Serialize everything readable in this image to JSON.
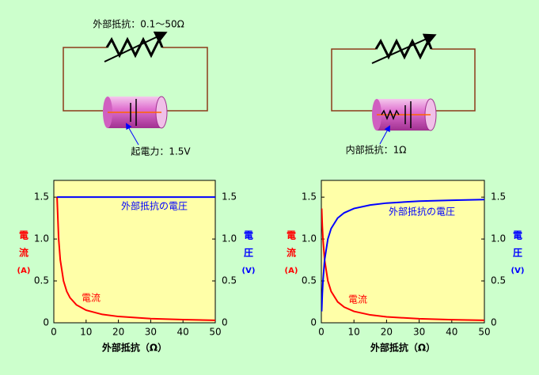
{
  "diagram": {
    "labels": [
      "外部抵抗：0.1～50Ω",
      "起電力：1.5V",
      "内部抵抗：1Ω"
    ]
  },
  "chart_data": [
    {
      "type": "line",
      "xlabel": "外部抵抗（Ω）",
      "ylabel": [
        "電",
        "流",
        "(A)"
      ],
      "y2label": [
        "電",
        "圧",
        "(V)"
      ],
      "annotations": [
        "外部抵抗の電圧",
        "電流"
      ],
      "x": [
        1,
        1.5,
        2,
        3,
        4,
        5,
        7,
        10,
        15,
        20,
        30,
        40,
        50
      ],
      "series": [
        {
          "name": "電流",
          "color": "#ff0000",
          "values": [
            1.5,
            1,
            0.75,
            0.5,
            0.375,
            0.3,
            0.214,
            0.15,
            0.1,
            0.075,
            0.05,
            0.0375,
            0.03
          ]
        },
        {
          "name": "外部抵抗の電圧",
          "color": "#0000ff",
          "axis": "y2",
          "values": [
            1.5,
            1.5,
            1.5,
            1.5,
            1.5,
            1.5,
            1.5,
            1.5,
            1.5,
            1.5,
            1.5,
            1.5,
            1.5
          ]
        }
      ],
      "xlim": [
        0,
        50
      ],
      "xticks": [
        0,
        10,
        20,
        30,
        40,
        50
      ],
      "ylim": [
        0,
        1.7
      ],
      "yticks": [
        0,
        0.5,
        {
          "value": 1,
          "label": "1.0"
        },
        1.5
      ],
      "y2lim": [
        0,
        1.7
      ],
      "y2ticks": [
        0,
        0.5,
        {
          "value": 1,
          "label": "1.0"
        },
        1.5
      ]
    },
    {
      "type": "line",
      "xlabel": "外部抵抗（Ω）",
      "ylabel": [
        "電",
        "流",
        "(A)"
      ],
      "y2label": [
        "電",
        "圧",
        "(V)"
      ],
      "annotations": [
        "外部抵抗の電圧",
        "電流"
      ],
      "x": [
        0.1,
        0.3,
        0.5,
        1,
        2,
        3,
        5,
        7,
        10,
        15,
        20,
        30,
        40,
        50
      ],
      "series": [
        {
          "name": "電流",
          "color": "#ff0000",
          "values": [
            1.364,
            1.154,
            1,
            0.75,
            0.5,
            0.375,
            0.25,
            0.1875,
            0.136,
            0.094,
            0.071,
            0.048,
            0.037,
            0.029
          ]
        },
        {
          "name": "外部抵抗の電圧",
          "color": "#0000ff",
          "axis": "y2",
          "values": [
            0.136,
            0.346,
            0.5,
            0.75,
            1,
            1.125,
            1.25,
            1.3125,
            1.364,
            1.406,
            1.429,
            1.452,
            1.463,
            1.471
          ]
        }
      ],
      "xlim": [
        0,
        50
      ],
      "xticks": [
        0,
        10,
        20,
        30,
        40,
        50
      ],
      "ylim": [
        0,
        1.7
      ],
      "yticks": [
        0,
        0.5,
        {
          "value": 1,
          "label": "1.0"
        },
        1.5
      ],
      "y2lim": [
        0,
        1.7
      ],
      "y2ticks": [
        0,
        0.5,
        {
          "value": 1,
          "label": "1.0"
        },
        1.5
      ]
    }
  ]
}
